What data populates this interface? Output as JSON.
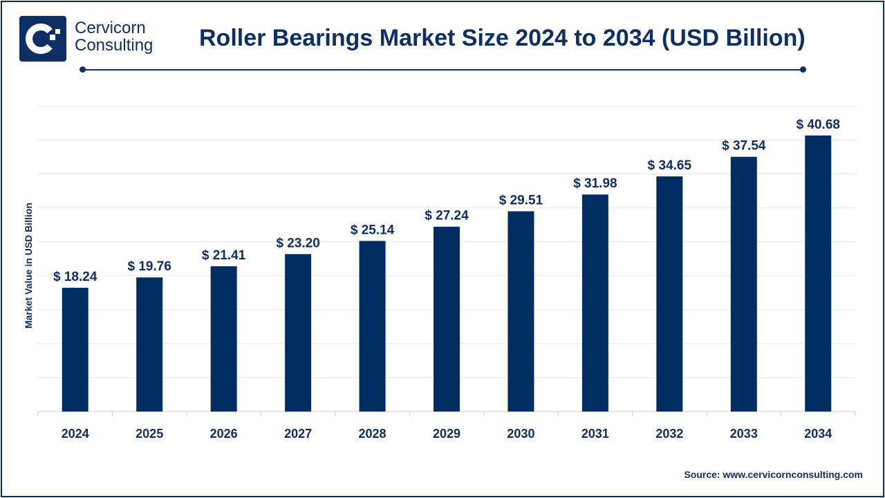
{
  "brand": {
    "line1": "Cervicorn",
    "line2": "Consulting",
    "color": "#0d2f66"
  },
  "title": "Roller Bearings Market Size 2024 to 2034 (USD Billion)",
  "source": "Source: www.cervicornconsulting.com",
  "chart_data": {
    "type": "bar",
    "title": "Roller Bearings Market Size 2024 to 2034 (USD Billion)",
    "xlabel": "",
    "ylabel": "Market Value in USD Billion",
    "categories": [
      "2024",
      "2025",
      "2026",
      "2027",
      "2028",
      "2029",
      "2030",
      "2031",
      "2032",
      "2033",
      "2034"
    ],
    "values": [
      18.24,
      19.76,
      21.41,
      23.2,
      25.14,
      27.24,
      29.51,
      31.98,
      34.65,
      37.54,
      40.68
    ],
    "data_labels": [
      "$ 18.24",
      "$ 19.76",
      "$ 21.41",
      "$ 23.20",
      "$ 25.14",
      "$ 27.24",
      "$ 29.51",
      "$ 31.98",
      "$ 34.65",
      "$ 37.54",
      "$ 40.68"
    ],
    "ylim": [
      0,
      45
    ],
    "grid": true,
    "y_tick_labels_shown": false,
    "bar_color": "#002d62"
  }
}
